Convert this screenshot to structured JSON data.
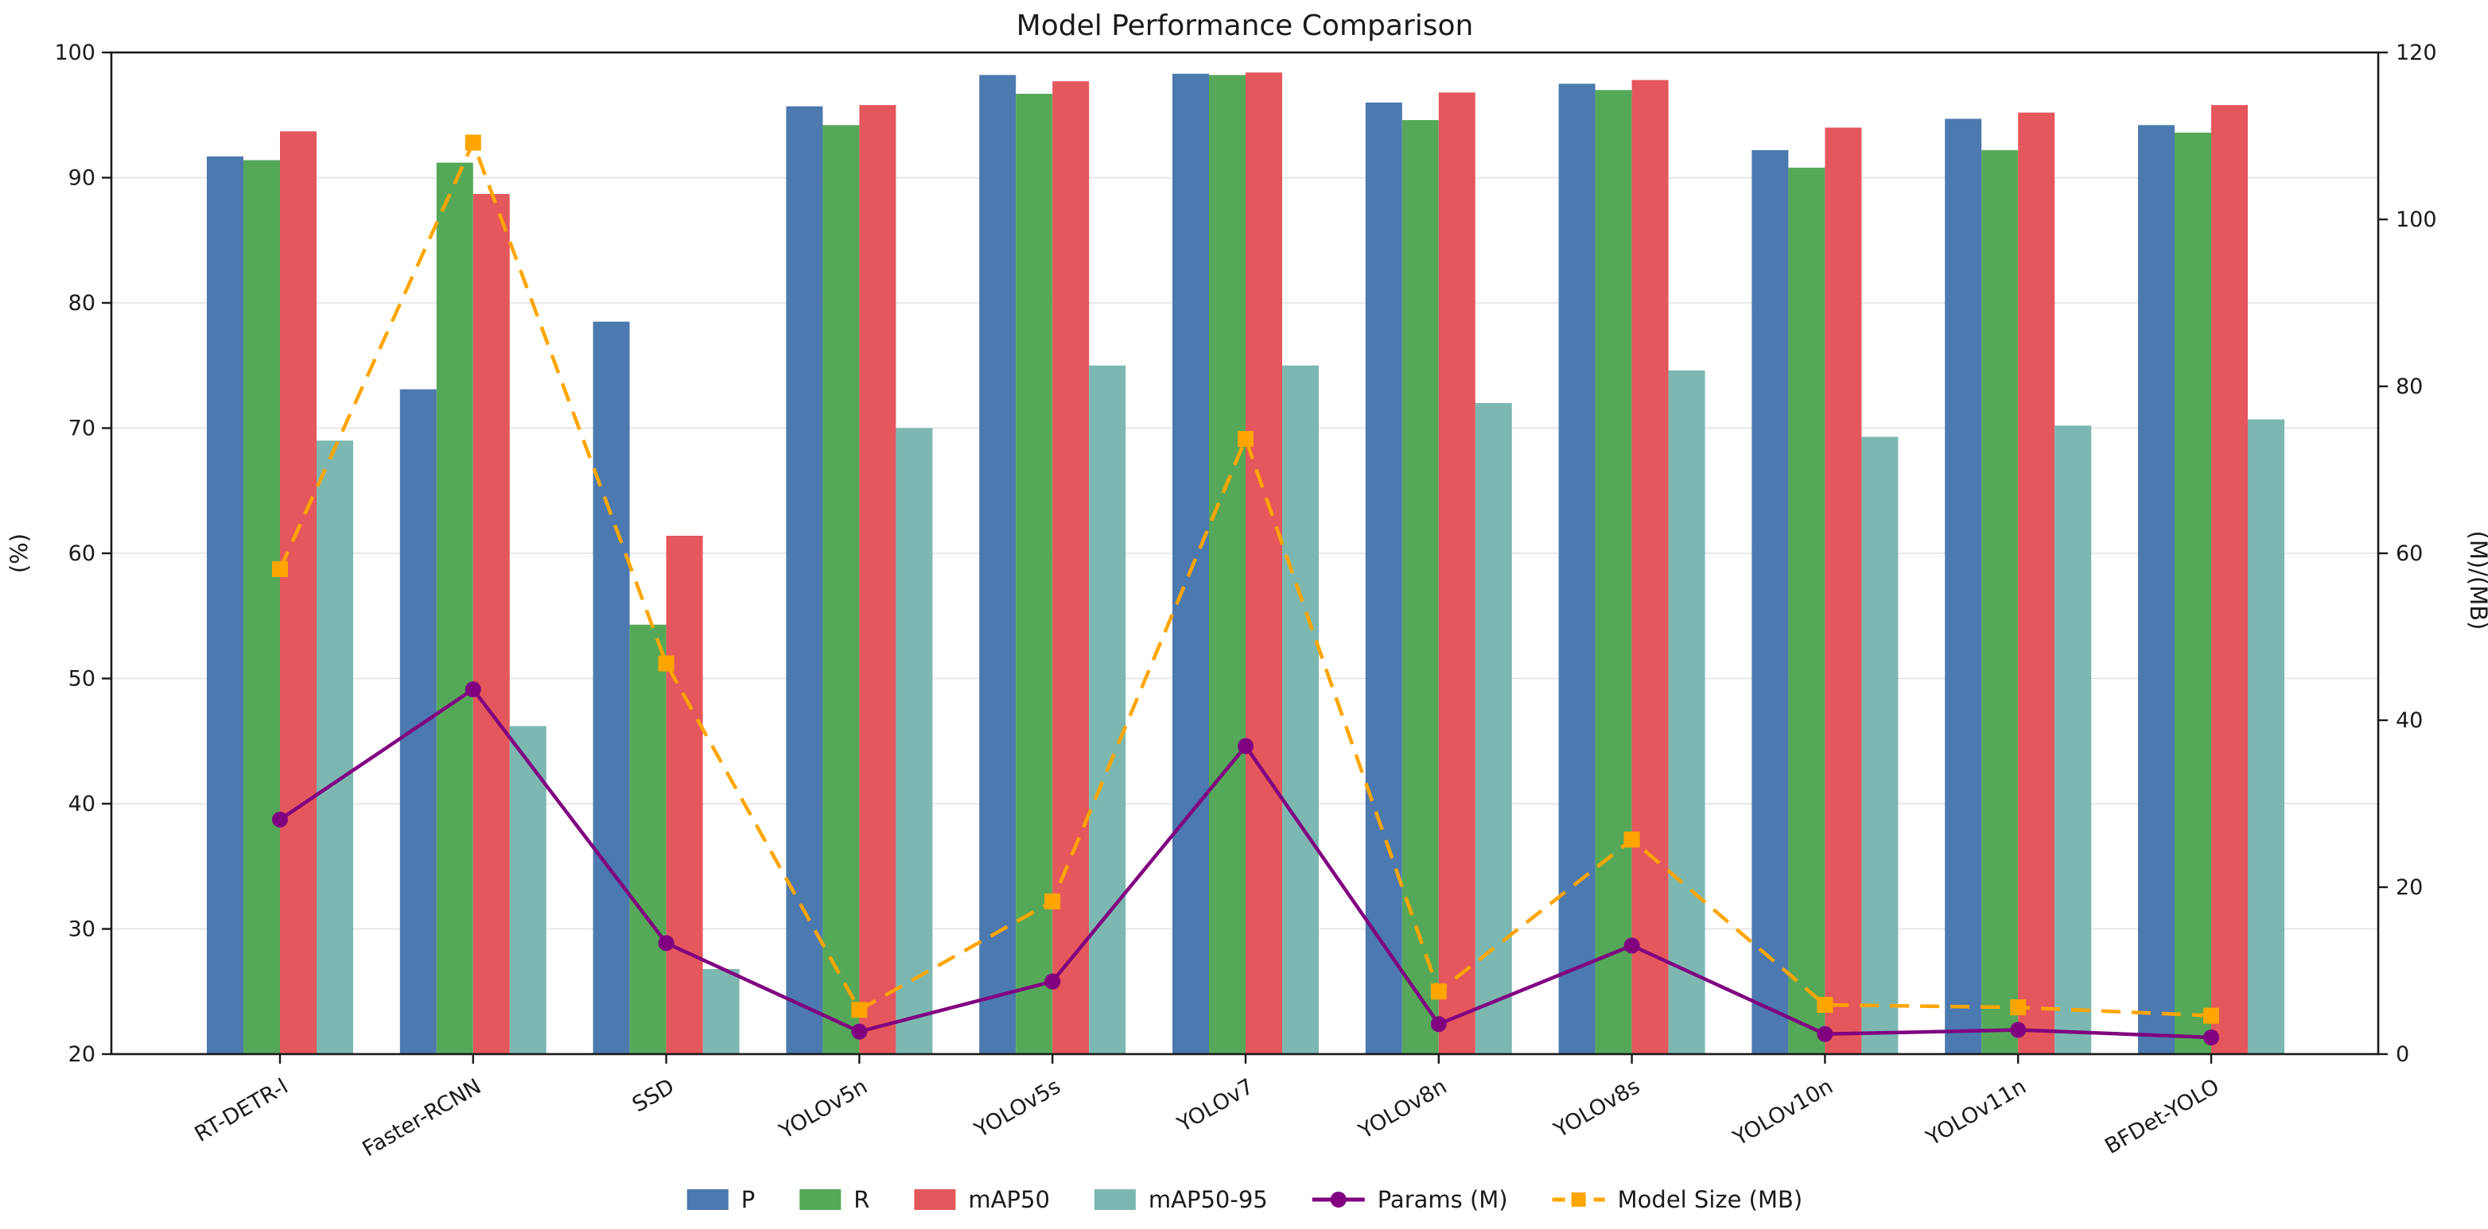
{
  "title": "Model Performance Comparison",
  "left_axis": {
    "label": "(%)",
    "min": 20,
    "max": 100,
    "ticks": [
      20,
      30,
      40,
      50,
      60,
      70,
      80,
      90,
      100
    ]
  },
  "right_axis": {
    "label": "(M)/(MB)",
    "min": 0,
    "max": 120,
    "ticks": [
      0,
      20,
      40,
      60,
      80,
      100,
      120
    ]
  },
  "legend": [
    "P",
    "R",
    "mAP50",
    "mAP50-95",
    "Params (M)",
    "Model Size (MB)"
  ],
  "colors": {
    "p_bar": "#4C79AF",
    "r_bar": "#55A858",
    "map50_bar": "#E4575C",
    "map5095_bar": "#7CB8B1",
    "params_line": "#800080",
    "modelsize_line": "#FFA500",
    "grid": "#e0e0e0",
    "spine": "#1a1a1a"
  },
  "chart_data": {
    "type": "bar",
    "title": "Model Performance Comparison",
    "xlabel": "",
    "ylabel_left": "(%)",
    "ylabel_right": "(M)/(MB)",
    "ylim_left": [
      20,
      100
    ],
    "ylim_right": [
      0,
      120
    ],
    "grid": "horizontal",
    "legend_position": "bottom-center",
    "categories": [
      "RT-DETR-l",
      "Faster-RCNN",
      "SSD",
      "YOLOv5n",
      "YOLOv5s",
      "YOLOv7",
      "YOLOv8n",
      "YOLOv8s",
      "YOLOv10n",
      "YOLOv11n",
      "BFDet-YOLO"
    ],
    "series": [
      {
        "name": "P",
        "type": "bar",
        "axis": "left",
        "color": "#4C79AF",
        "values": [
          91.7,
          73.1,
          78.5,
          95.7,
          98.2,
          98.3,
          96.0,
          97.5,
          92.2,
          94.7,
          94.2
        ]
      },
      {
        "name": "R",
        "type": "bar",
        "axis": "left",
        "color": "#55A858",
        "values": [
          91.4,
          91.2,
          54.3,
          94.2,
          96.7,
          98.2,
          94.6,
          97.0,
          90.8,
          92.2,
          93.6
        ]
      },
      {
        "name": "mAP50",
        "type": "bar",
        "axis": "left",
        "color": "#E4575C",
        "values": [
          93.7,
          88.7,
          61.4,
          95.8,
          97.7,
          98.4,
          96.8,
          97.8,
          94.0,
          95.2,
          95.8
        ]
      },
      {
        "name": "mAP50-95",
        "type": "bar",
        "axis": "left",
        "color": "#7CB8B1",
        "values": [
          69.0,
          46.2,
          26.8,
          70.0,
          75.0,
          75.0,
          72.0,
          74.6,
          69.3,
          70.2,
          70.7
        ]
      },
      {
        "name": "Params (M)",
        "type": "line",
        "axis": "right",
        "color": "#800080",
        "marker": "circle",
        "dashed": false,
        "values": [
          28.1,
          43.7,
          13.3,
          2.7,
          8.7,
          36.9,
          3.6,
          13.0,
          2.4,
          2.9,
          2.0
        ]
      },
      {
        "name": "Model Size (MB)",
        "type": "line",
        "axis": "right",
        "color": "#FFA500",
        "marker": "square",
        "dashed": true,
        "values": [
          58.1,
          109.2,
          46.8,
          5.3,
          18.3,
          73.7,
          7.5,
          25.7,
          5.9,
          5.6,
          4.6
        ]
      }
    ]
  }
}
